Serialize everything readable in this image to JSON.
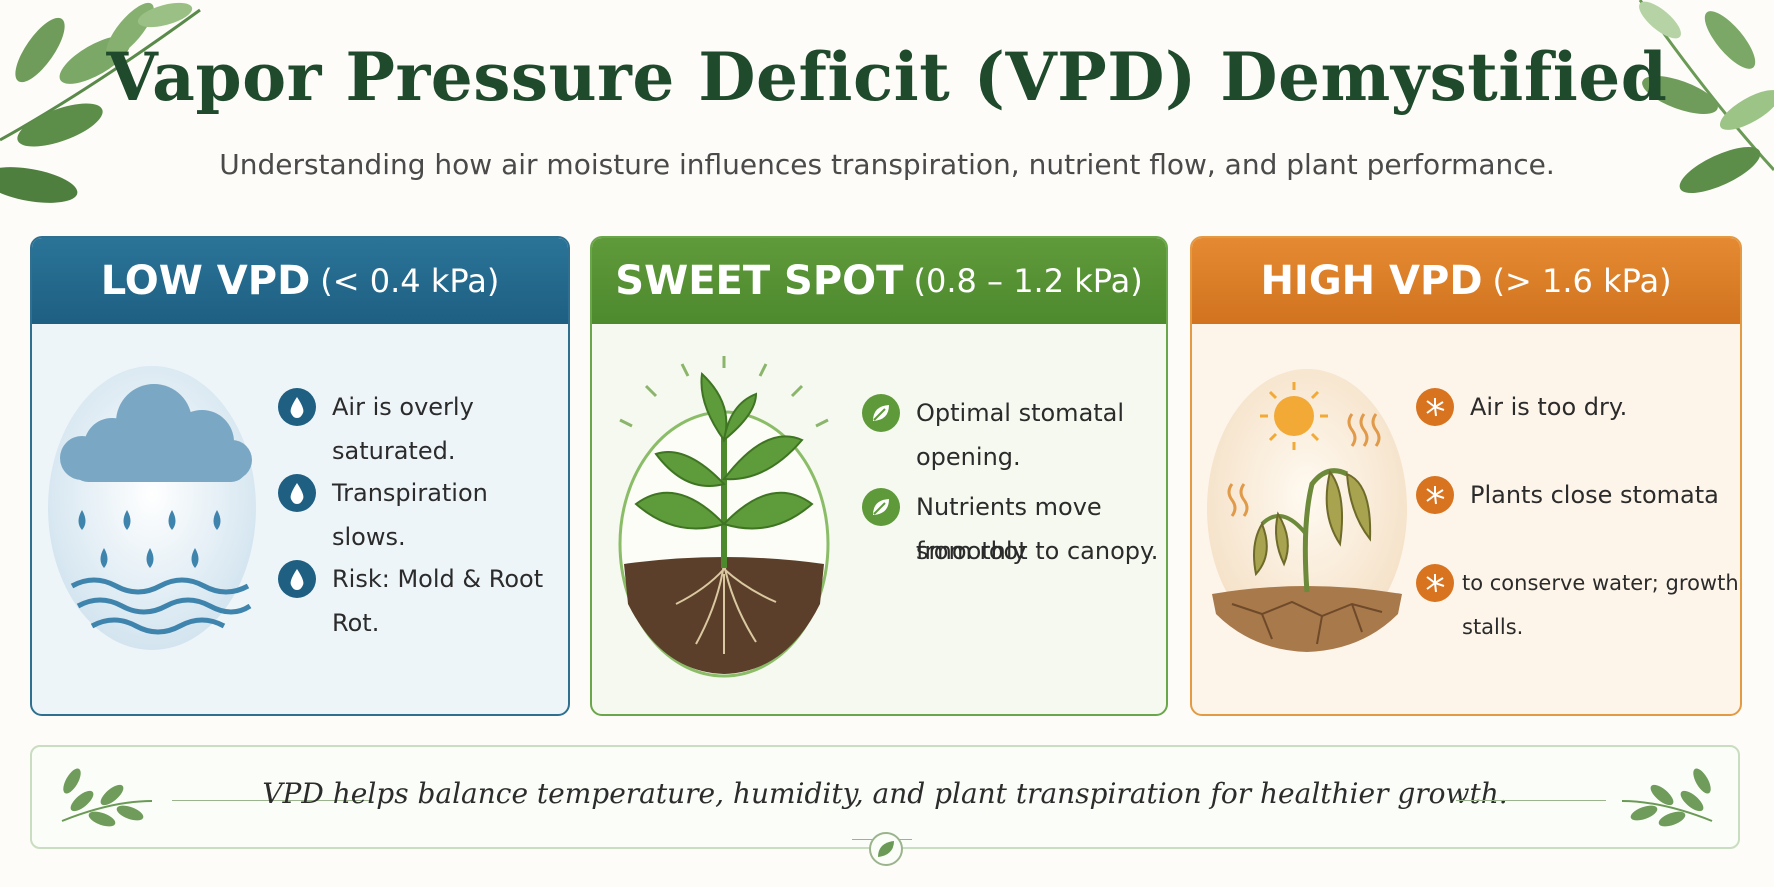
{
  "header": {
    "title": "Vapor Pressure Deficit (VPD) Demystified",
    "subtitle": "Understanding how air moisture influences transpiration, nutrient flow, and plant performance."
  },
  "cards": [
    {
      "heading": "LOW VPD",
      "range": "(< 0.4 kPa)",
      "accent": "#1e5f82",
      "icon": "water-drop-icon",
      "points": [
        "Air is overly saturated.",
        "Transpiration slows.",
        "Risk: Mold & Root Rot."
      ]
    },
    {
      "heading": "SWEET SPOT",
      "range": "(0.8 – 1.2 kPa)",
      "accent": "#5f9a3a",
      "icon": "leaf-icon",
      "points": [
        "Optimal stomatal opening.",
        "Nutrients move smoothly",
        "from root to canopy."
      ]
    },
    {
      "heading": "HIGH VPD",
      "range": "(> 1.6 kPa)",
      "accent": "#d8731f",
      "icon": "dry-crack-icon",
      "points": [
        "Air is too dry.",
        "Plants close stomata",
        "to conserve water; growth stalls."
      ]
    }
  ],
  "footer": {
    "message": "VPD helps balance temperature, humidity, and plant transpiration for healthier growth."
  }
}
